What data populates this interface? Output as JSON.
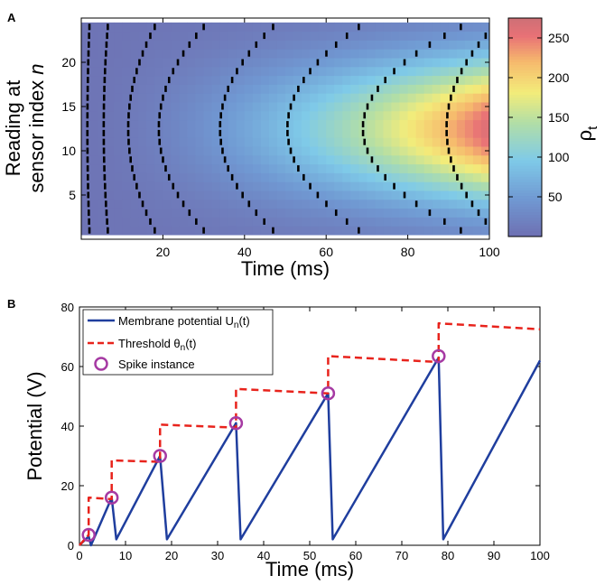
{
  "chart_data": [
    {
      "panel_label": "A",
      "type": "heatmap",
      "title": "",
      "xlabel": "Time (ms)",
      "ylabel_line1": "Reading at",
      "ylabel_line2": "sensor index",
      "ylabel_italic": "n",
      "colorbar_label": "ρ",
      "colorbar_label_sub": "t",
      "xlim": [
        0,
        100
      ],
      "ylim": [
        0,
        25
      ],
      "sensor_count": 24,
      "xticks": [
        20,
        40,
        60,
        80,
        100
      ],
      "yticks": [
        5,
        10,
        15,
        20
      ],
      "colorbar_range": [
        0,
        275
      ],
      "colorbar_ticks": [
        50,
        100,
        150,
        200,
        250
      ],
      "intensity_model": "rho = 5 + 260*(t/100)^1.7*exp(-((n-12.5)/8)^2)",
      "spike_arcs": [
        {
          "t_center": 1.5,
          "t_edge": 2.0
        },
        {
          "t_center": 5.5,
          "t_edge": 6.5
        },
        {
          "t_center": 11.5,
          "t_edge": 18.0
        },
        {
          "t_center": 19.0,
          "t_edge": 30.0
        },
        {
          "t_center": 34.0,
          "t_edge": 47.0
        },
        {
          "t_center": 50.5,
          "t_edge": 68.0
        },
        {
          "t_center": 69.0,
          "t_edge": 93.0
        },
        {
          "t_center": 89.5,
          "t_edge": 101.0
        }
      ]
    },
    {
      "panel_label": "B",
      "type": "line",
      "title": "",
      "xlabel": "Time (ms)",
      "ylabel": "Potential (V)",
      "xlim": [
        0,
        100
      ],
      "ylim": [
        0,
        80
      ],
      "xticks": [
        0,
        10,
        20,
        30,
        40,
        50,
        60,
        70,
        80,
        90,
        100
      ],
      "yticks": [
        0,
        20,
        40,
        60,
        80
      ],
      "legend": {
        "position": "top-left",
        "entries": [
          {
            "text": "Membrane potential U",
            "sub": "n",
            "suffix": "(t)"
          },
          {
            "text": "Threshold θ",
            "sub": "n",
            "suffix": "(t)"
          },
          {
            "text": "Spike instance",
            "sub": "",
            "suffix": ""
          }
        ]
      },
      "series": [
        {
          "name": "Membrane potential Un(t)",
          "color": "#1f3e9e",
          "style": "solid",
          "x": [
            0,
            2,
            2.5,
            7,
            8,
            17.5,
            19,
            34,
            35,
            54,
            55,
            78,
            79,
            100
          ],
          "y": [
            0,
            3,
            0,
            16,
            2,
            30,
            2,
            41,
            2,
            51,
            2,
            63,
            2,
            62
          ]
        },
        {
          "name": "Threshold θn(t)",
          "color": "#e8231c",
          "style": "dashed",
          "x": [
            0,
            2,
            2,
            7,
            7,
            17.5,
            17.5,
            34,
            34,
            54,
            54,
            78,
            78,
            100
          ],
          "y": [
            0,
            3.5,
            16,
            15.5,
            28.5,
            28,
            40.5,
            39.5,
            52.5,
            51,
            63.5,
            61.5,
            74.5,
            72.5
          ]
        }
      ],
      "spikes": {
        "name": "Spike instance",
        "color": "#a63aa3",
        "x": [
          2,
          7,
          17.5,
          34,
          54,
          78
        ],
        "y": [
          3.5,
          16,
          30,
          41,
          51,
          63.5
        ]
      }
    }
  ]
}
